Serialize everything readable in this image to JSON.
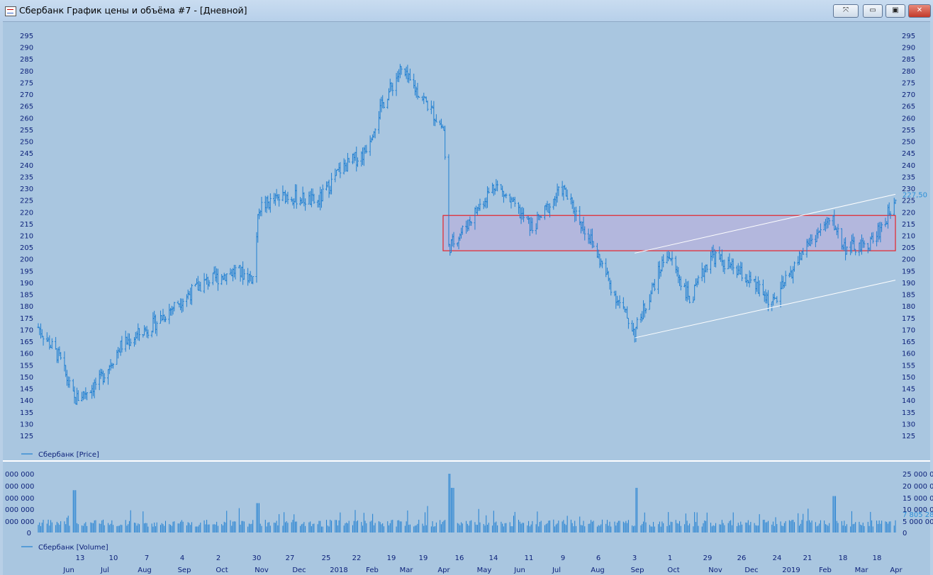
{
  "window": {
    "title": "Сбербанк График цены и объёма #7 - [Дневной]",
    "buttons": {
      "pin": "⤧",
      "minimize": "▭",
      "maximize": "▣",
      "close": "✕"
    }
  },
  "colors": {
    "background": "#a9c6e0",
    "bars": "#1f7fd1",
    "axis_text": "#0b1f78",
    "zone_fill": "#b7b2dc",
    "zone_border": "#e5242a",
    "trendline": "#ffffff",
    "last_label": "#2b8fd8"
  },
  "chart_data": [
    {
      "type": "ohlc",
      "series": [
        {
          "name": "Сбербанк [Price]"
        }
      ],
      "ylim": [
        120,
        300
      ],
      "y_ticks": [
        295,
        290,
        285,
        280,
        275,
        270,
        265,
        260,
        255,
        250,
        245,
        240,
        235,
        230,
        225,
        220,
        215,
        210,
        205,
        200,
        195,
        190,
        185,
        180,
        175,
        170,
        165,
        160,
        155,
        150,
        145,
        140,
        135,
        130,
        125
      ],
      "last_value_label": "227,50",
      "approx_closes": [
        {
          "date": "2017-05-15",
          "close": 171
        },
        {
          "date": "2017-06-01",
          "close": 158
        },
        {
          "date": "2017-06-13",
          "close": 140
        },
        {
          "date": "2017-07-03",
          "close": 148
        },
        {
          "date": "2017-07-20",
          "close": 163
        },
        {
          "date": "2017-08-15",
          "close": 172
        },
        {
          "date": "2017-09-05",
          "close": 182
        },
        {
          "date": "2017-09-25",
          "close": 190
        },
        {
          "date": "2017-10-20",
          "close": 195
        },
        {
          "date": "2017-11-03",
          "close": 192
        },
        {
          "date": "2017-11-08",
          "close": 222
        },
        {
          "date": "2017-11-30",
          "close": 227
        },
        {
          "date": "2017-12-25",
          "close": 224
        },
        {
          "date": "2018-01-12",
          "close": 238
        },
        {
          "date": "2018-01-31",
          "close": 245
        },
        {
          "date": "2018-02-15",
          "close": 266
        },
        {
          "date": "2018-03-01",
          "close": 280
        },
        {
          "date": "2018-03-20",
          "close": 268
        },
        {
          "date": "2018-04-05",
          "close": 255
        },
        {
          "date": "2018-04-09",
          "close": 205
        },
        {
          "date": "2018-04-20",
          "close": 212
        },
        {
          "date": "2018-05-16",
          "close": 232
        },
        {
          "date": "2018-06-15",
          "close": 213
        },
        {
          "date": "2018-07-09",
          "close": 230
        },
        {
          "date": "2018-08-01",
          "close": 208
        },
        {
          "date": "2018-08-20",
          "close": 185
        },
        {
          "date": "2018-09-05",
          "close": 169
        },
        {
          "date": "2018-10-01",
          "close": 203
        },
        {
          "date": "2018-10-20",
          "close": 182
        },
        {
          "date": "2018-11-05",
          "close": 202
        },
        {
          "date": "2018-12-01",
          "close": 193
        },
        {
          "date": "2018-12-25",
          "close": 181
        },
        {
          "date": "2019-01-21",
          "close": 206
        },
        {
          "date": "2019-02-10",
          "close": 217
        },
        {
          "date": "2019-02-20",
          "close": 205
        },
        {
          "date": "2019-03-10",
          "close": 205
        },
        {
          "date": "2019-03-25",
          "close": 216
        },
        {
          "date": "2019-04-02",
          "close": 227.5
        }
      ],
      "annotations": [
        {
          "type": "zone",
          "from": "2018-04-09",
          "to": "2019-04-02",
          "y_low": 203.5,
          "y_high": 218.5
        },
        {
          "type": "trendline",
          "from": {
            "date": "2018-09-05",
            "value": 202.5
          },
          "to": {
            "date": "2019-04-02",
            "value": 227.5
          }
        },
        {
          "type": "trendline",
          "from": {
            "date": "2018-09-05",
            "value": 166.5
          },
          "to": {
            "date": "2019-04-02",
            "value": 191
          }
        }
      ]
    },
    {
      "type": "bar",
      "series": [
        {
          "name": "Сбербанк [Volume]"
        }
      ],
      "left_ticks": [
        "000 000",
        "000 000",
        "000 000",
        "000 000",
        "000 000",
        "0"
      ],
      "right_ticks": [
        "25 000 0",
        "20 000 0",
        "15 000 0",
        "10 000 0",
        "5 000 00",
        "0"
      ],
      "last_value_label": "7 805 28",
      "ylim": [
        0,
        25000000
      ],
      "approx_values": [
        {
          "date": "2017-06-13",
          "value": 18000000
        },
        {
          "date": "2017-11-07",
          "value": 12500000
        },
        {
          "date": "2018-04-09",
          "value": 25000000
        },
        {
          "date": "2018-04-12",
          "value": 19000000
        },
        {
          "date": "2018-09-07",
          "value": 19000000
        },
        {
          "date": "2019-02-12",
          "value": 15500000
        }
      ]
    }
  ],
  "x_axis": {
    "day_labels": [
      "13",
      "10",
      "7",
      "4",
      "2",
      "30",
      "27",
      "25",
      "22",
      "19",
      "19",
      "16",
      "14",
      "11",
      "9",
      "6",
      "3",
      "1",
      "29",
      "26",
      "24",
      "21",
      "18",
      "18"
    ],
    "month_labels": [
      "Jun",
      "Jul",
      "Aug",
      "Sep",
      "Oct",
      "Nov",
      "Dec",
      "2018",
      "Feb",
      "Mar",
      "Apr",
      "May",
      "Jun",
      "Jul",
      "Aug",
      "Sep",
      "Oct",
      "Nov",
      "Dec",
      "2019",
      "Feb",
      "Mar",
      "Apr"
    ]
  }
}
